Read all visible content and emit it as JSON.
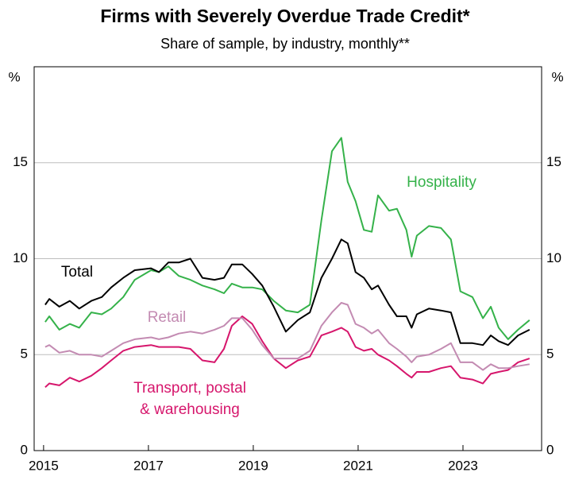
{
  "chart_data": {
    "type": "line",
    "title": "Firms with Severely Overdue Trade Credit*",
    "subtitle": "Share of sample, by industry, monthly**",
    "y_label": "%",
    "x": [
      2015.03,
      2015.11,
      2015.3,
      2015.5,
      2015.68,
      2015.91,
      2016.11,
      2016.29,
      2016.52,
      2016.74,
      2017.05,
      2017.2,
      2017.38,
      2017.58,
      2017.8,
      2018.03,
      2018.26,
      2018.44,
      2018.59,
      2018.79,
      2018.98,
      2019.17,
      2019.39,
      2019.62,
      2019.85,
      2020.08,
      2020.3,
      2020.5,
      2020.68,
      2020.8,
      2020.95,
      2021.11,
      2021.26,
      2021.38,
      2021.59,
      2021.74,
      2021.92,
      2022.02,
      2022.12,
      2022.35,
      2022.58,
      2022.77,
      2022.95,
      2023.18,
      2023.38,
      2023.53,
      2023.68,
      2023.86,
      2024.05,
      2024.27
    ],
    "series": [
      {
        "label": [
          "Total"
        ],
        "color": "#000000",
        "values": [
          7.6,
          7.9,
          7.5,
          7.8,
          7.4,
          7.8,
          8.0,
          8.5,
          9.0,
          9.4,
          9.5,
          9.3,
          9.8,
          9.8,
          10.0,
          9.0,
          8.9,
          9.0,
          9.7,
          9.7,
          9.2,
          8.6,
          7.5,
          6.2,
          6.8,
          7.2,
          9.0,
          10.0,
          11.0,
          10.8,
          9.3,
          9.0,
          8.4,
          8.6,
          7.6,
          7.0,
          7.0,
          6.4,
          7.1,
          7.4,
          7.3,
          7.2,
          5.6,
          5.6,
          5.5,
          6.0,
          5.7,
          5.5,
          6.0,
          6.3
        ]
      },
      {
        "label": [
          "Hospitality"
        ],
        "color": "#35b24a",
        "values": [
          6.7,
          7.0,
          6.3,
          6.6,
          6.4,
          7.2,
          7.1,
          7.4,
          8.0,
          8.9,
          9.4,
          9.3,
          9.6,
          9.1,
          8.9,
          8.6,
          8.4,
          8.2,
          8.7,
          8.5,
          8.5,
          8.4,
          7.8,
          7.3,
          7.2,
          7.6,
          12.0,
          15.6,
          16.3,
          14.0,
          13.0,
          11.5,
          11.4,
          13.3,
          12.5,
          12.6,
          11.5,
          10.1,
          11.2,
          11.7,
          11.6,
          11.0,
          8.3,
          8.0,
          6.9,
          7.5,
          6.4,
          5.8,
          6.3,
          6.8
        ]
      },
      {
        "label": [
          "Retail"
        ],
        "color": "#c38bb2",
        "values": [
          5.4,
          5.5,
          5.1,
          5.2,
          5.0,
          5.0,
          4.9,
          5.2,
          5.6,
          5.8,
          5.9,
          5.8,
          5.9,
          6.1,
          6.2,
          6.1,
          6.3,
          6.5,
          6.9,
          6.9,
          6.3,
          5.5,
          4.8,
          4.8,
          4.8,
          5.2,
          6.5,
          7.2,
          7.7,
          7.6,
          6.6,
          6.4,
          6.1,
          6.3,
          5.6,
          5.3,
          4.9,
          4.6,
          4.9,
          5.0,
          5.3,
          5.6,
          4.6,
          4.6,
          4.2,
          4.5,
          4.3,
          4.3,
          4.4,
          4.5
        ]
      },
      {
        "label": [
          "Transport, postal",
          "& warehousing"
        ],
        "color": "#d6166c",
        "values": [
          3.3,
          3.5,
          3.4,
          3.8,
          3.6,
          3.9,
          4.3,
          4.7,
          5.2,
          5.4,
          5.5,
          5.4,
          5.4,
          5.4,
          5.3,
          4.7,
          4.6,
          5.3,
          6.5,
          7.0,
          6.6,
          5.7,
          4.8,
          4.3,
          4.7,
          4.9,
          6.0,
          6.2,
          6.4,
          6.2,
          5.4,
          5.2,
          5.3,
          5.0,
          4.7,
          4.4,
          4.0,
          3.8,
          4.1,
          4.1,
          4.3,
          4.4,
          3.8,
          3.7,
          3.5,
          4.0,
          4.1,
          4.2,
          4.6,
          4.8
        ]
      }
    ],
    "xlim": [
      2014.82,
      2024.5
    ],
    "xticks": [
      2015,
      2017,
      2019,
      2021,
      2023
    ],
    "ylim": [
      0,
      20
    ],
    "yticks": [
      0,
      5,
      10,
      15
    ],
    "grid": true
  }
}
